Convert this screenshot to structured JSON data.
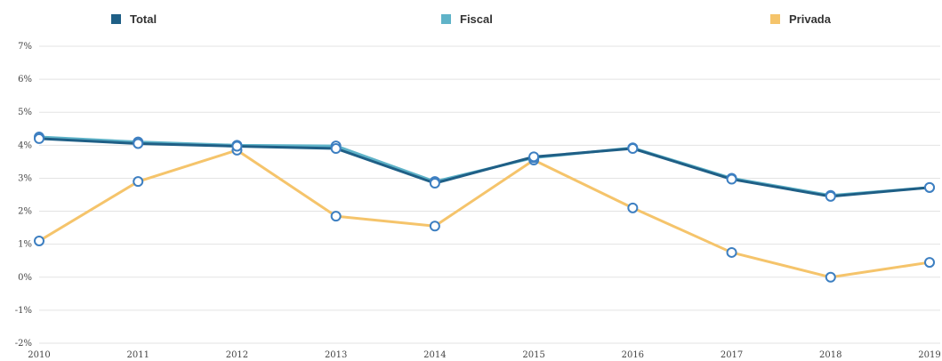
{
  "chart_data": {
    "type": "line",
    "title": "",
    "xlabel": "",
    "ylabel": "",
    "categories": [
      "2010",
      "2011",
      "2012",
      "2013",
      "2014",
      "2015",
      "2016",
      "2017",
      "2018",
      "2019"
    ],
    "ylim": [
      -2,
      7
    ],
    "y_ticks": [
      "-2%",
      "-1%",
      "0%",
      "1%",
      "2%",
      "3%",
      "4%",
      "5%",
      "6%",
      "7%"
    ],
    "y_tick_values": [
      -2,
      -1,
      0,
      1,
      2,
      3,
      4,
      5,
      6,
      7
    ],
    "grid": true,
    "legend_position": "top",
    "series": [
      {
        "name": "Total",
        "color": "#1f5f86",
        "values": [
          4.2,
          4.05,
          3.97,
          3.9,
          2.85,
          3.65,
          3.9,
          2.97,
          2.45,
          2.72
        ]
      },
      {
        "name": "Fiscal",
        "color": "#5fb3c8",
        "values": [
          4.25,
          4.1,
          4.0,
          3.98,
          2.9,
          3.62,
          3.92,
          3.0,
          2.48,
          2.72
        ]
      },
      {
        "name": "Privada",
        "color": "#f5c46b",
        "values": [
          1.1,
          2.9,
          3.85,
          1.85,
          1.55,
          3.55,
          2.1,
          0.75,
          0.0,
          0.45
        ]
      }
    ]
  }
}
